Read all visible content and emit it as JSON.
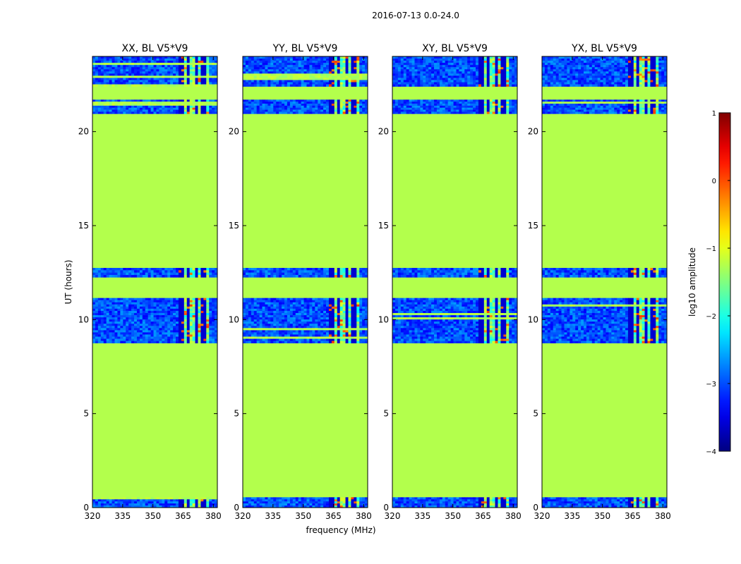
{
  "chart_data": {
    "type": "heatmap",
    "suptitle": "2016-07-13 0.0-24.0",
    "panels": [
      {
        "title": "XX, BL V5*V9",
        "pol": "XX"
      },
      {
        "title": "YY, BL V5*V9",
        "pol": "YY"
      },
      {
        "title": "XY, BL V5*V9",
        "pol": "XY"
      },
      {
        "title": "YX, BL V5*V9",
        "pol": "YX"
      }
    ],
    "xlabel": "frequency (MHz)",
    "ylabel": "UT (hours)",
    "xlim": [
      320,
      382
    ],
    "ylim": [
      0,
      24
    ],
    "xticks": [
      320,
      335,
      350,
      365,
      380
    ],
    "yticks": [
      0,
      5,
      10,
      15,
      20
    ],
    "colorbar": {
      "label": "log10 amplitude",
      "range": [
        -4,
        1
      ],
      "ticks": [
        1,
        0,
        -1,
        -2,
        -3,
        -4
      ],
      "colormap": "jet"
    },
    "fill_value_log10": -1.25,
    "observing_blocks_hours": [
      {
        "start": 0.0,
        "end": 0.55,
        "level": "noise"
      },
      {
        "start": 8.75,
        "end": 11.15,
        "level": "noise"
      },
      {
        "start": 12.25,
        "end": 12.75,
        "level": "noise"
      },
      {
        "start": 20.95,
        "end": 21.7,
        "level": "noise"
      },
      {
        "start": 22.4,
        "end": 24.0,
        "level": "noise"
      }
    ],
    "rfi_band_mhz": [
      363,
      378
    ],
    "rfi_channels_mhz": [
      363.8,
      367.5,
      371.5,
      375.2
    ]
  }
}
